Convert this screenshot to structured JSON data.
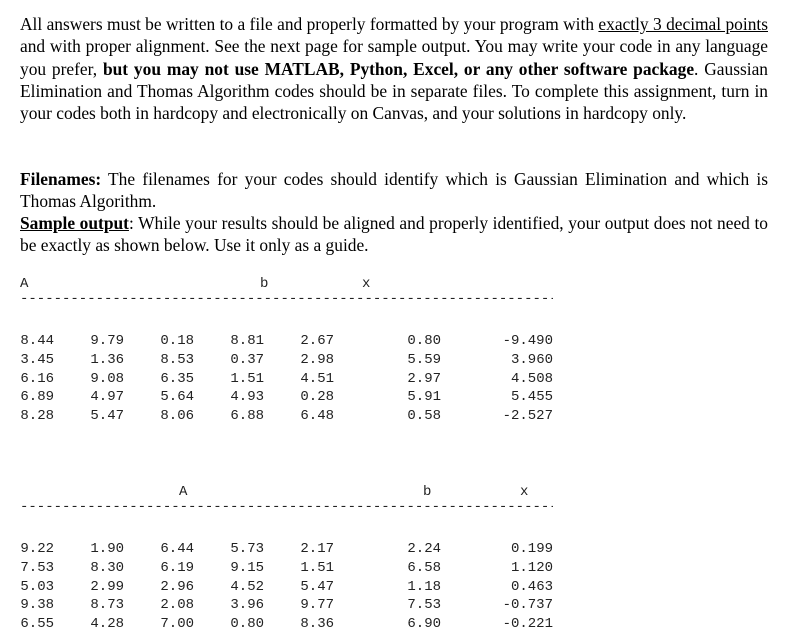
{
  "paragraph1": {
    "s1": "All answers must be written to a file and properly formatted by your program with ",
    "s2": "exactly 3 decimal points",
    "s3": " and with proper alignment.  See the next page for sample output.  You may write your code in any language you prefer, ",
    "s4": "but you may not use MATLAB, Python, Excel, or any other software package",
    "s5": ".   Gaussian Elimination and Thomas Algorithm codes should be in separate files.  To complete this assignment, turn in your codes both in hardcopy and electronically on Canvas, and your solutions in hardcopy only."
  },
  "paragraph2": {
    "label": "Filenames:",
    "text": "  The filenames for your codes should identify which is Gaussian Elimination and which is Thomas Algorithm."
  },
  "paragraph3": {
    "label": "Sample output",
    "text": ":  While your results should be aligned and properly identified, your output does not need to be exactly as shown below.  Use it only as a guide."
  },
  "tables": [
    {
      "header_A": "A",
      "header_b": "b",
      "header_x": "x",
      "rule": "------------------------------------------------------------------------",
      "rows": [
        {
          "a": [
            "8.44",
            "9.79",
            "0.18",
            "8.81",
            "2.67"
          ],
          "b": "0.80",
          "x": "-9.490"
        },
        {
          "a": [
            "3.45",
            "1.36",
            "8.53",
            "0.37",
            "2.98"
          ],
          "b": "5.59",
          "x": "3.960"
        },
        {
          "a": [
            "6.16",
            "9.08",
            "6.35",
            "1.51",
            "4.51"
          ],
          "b": "2.97",
          "x": "4.508"
        },
        {
          "a": [
            "6.89",
            "4.97",
            "5.64",
            "4.93",
            "0.28"
          ],
          "b": "5.91",
          "x": "5.455"
        },
        {
          "a": [
            "8.28",
            "5.47",
            "8.06",
            "6.88",
            "6.48"
          ],
          "b": "0.58",
          "x": "-2.527"
        }
      ]
    },
    {
      "header_A": "A",
      "header_b": "b",
      "header_x": "x",
      "rule": "------------------------------------------------------------------------",
      "rows": [
        {
          "a": [
            "9.22",
            "1.90",
            "6.44",
            "5.73",
            "2.17"
          ],
          "b": "2.24",
          "x": "0.199"
        },
        {
          "a": [
            "7.53",
            "8.30",
            "6.19",
            "9.15",
            "1.51"
          ],
          "b": "6.58",
          "x": "1.120"
        },
        {
          "a": [
            "5.03",
            "2.99",
            "2.96",
            "4.52",
            "5.47"
          ],
          "b": "1.18",
          "x": "0.463"
        },
        {
          "a": [
            "9.38",
            "8.73",
            "2.08",
            "3.96",
            "9.77"
          ],
          "b": "7.53",
          "x": "-0.737"
        },
        {
          "a": [
            "6.55",
            "4.28",
            "7.00",
            "0.80",
            "8.36"
          ],
          "b": "6.90",
          "x": "-0.221"
        }
      ]
    }
  ]
}
